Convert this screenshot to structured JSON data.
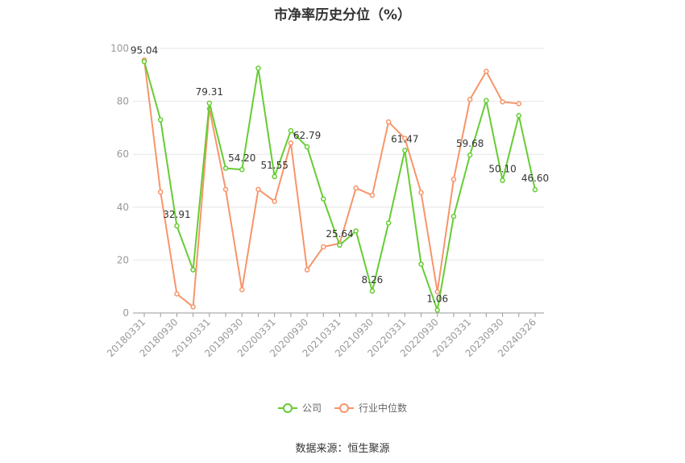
{
  "chart_data": {
    "type": "line",
    "title": "市净率历史分位（%）",
    "ylim": [
      0,
      100
    ],
    "yticks": [
      0,
      20,
      40,
      60,
      80,
      100
    ],
    "x": [
      "20180331",
      "20180630",
      "20180930",
      "20181231",
      "20190331",
      "20190630",
      "20190930",
      "20191231",
      "20200331",
      "20200630",
      "20200930",
      "20201231",
      "20210331",
      "20210630",
      "20210930",
      "20211231",
      "20220331",
      "20220630",
      "20220930",
      "20221231",
      "20230331",
      "20230630",
      "20230930",
      "20231231",
      "20240326"
    ],
    "xticks": [
      "20180331",
      "20180930",
      "20190331",
      "20190930",
      "20200331",
      "20200930",
      "20210331",
      "20210930",
      "20220331",
      "20220930",
      "20230331",
      "20230930",
      "20240326"
    ],
    "grid": true,
    "legend_position": "bottom",
    "series": [
      {
        "name": "公司",
        "color": "#66cc33",
        "values": [
          95.04,
          73.0,
          32.91,
          16.3,
          79.31,
          54.7,
          54.2,
          92.5,
          51.55,
          68.9,
          62.79,
          43.1,
          25.64,
          31.0,
          8.26,
          34.0,
          61.47,
          18.5,
          1.06,
          36.5,
          59.68,
          80.3,
          50.1,
          74.6,
          46.6
        ],
        "labels": {
          "0": "95.04",
          "2": "32.91",
          "4": "79.31",
          "6": "54.20",
          "8": "51.55",
          "10": "62.79",
          "12": "25.64",
          "14": "8.26",
          "16": "61.47",
          "18": "1.06",
          "20": "59.68",
          "22": "50.10",
          "24": "46.60"
        }
      },
      {
        "name": "行业中位数",
        "color": "#f7956a",
        "values": [
          95.6,
          45.7,
          7.2,
          2.3,
          77.2,
          46.7,
          8.8,
          46.7,
          42.2,
          64.2,
          16.3,
          25.0,
          26.3,
          47.2,
          44.5,
          72.2,
          66.0,
          45.5,
          8.0,
          50.5,
          80.7,
          91.3,
          79.8,
          79.1,
          null
        ]
      }
    ]
  },
  "source": "数据来源：恒生聚源"
}
